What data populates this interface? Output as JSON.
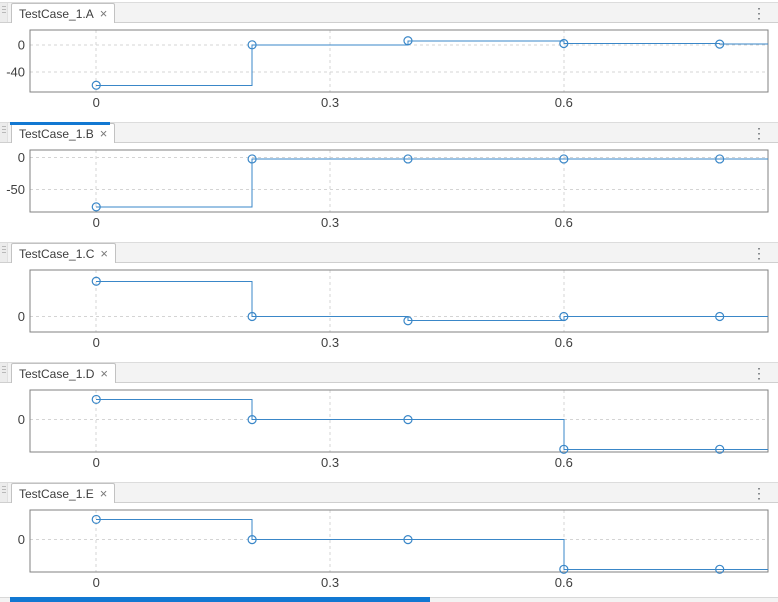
{
  "ui": {
    "close_glyph": "×",
    "menu_glyph": "⋮"
  },
  "colors": {
    "line": "#3a87c8",
    "accent": "#1278d2",
    "grid": "#d4d4d4",
    "box_border": "#828282",
    "tick_text": "#3f3f3f"
  },
  "panels": [
    {
      "tab": "TestCase_1.A"
    },
    {
      "tab": "TestCase_1.B"
    },
    {
      "tab": "TestCase_1.C"
    },
    {
      "tab": "TestCase_1.D"
    },
    {
      "tab": "TestCase_1.E"
    }
  ],
  "chart_data": [
    {
      "type": "line",
      "interp": "stairs-post",
      "title": "TestCase_1.A",
      "x": [
        0,
        0.2,
        0.4,
        0.6,
        0.8
      ],
      "values": [
        -60,
        0,
        6,
        2,
        1
      ],
      "xlim": [
        -0.085,
        0.862
      ],
      "ylim": [
        -70,
        22
      ],
      "xticks": [
        0,
        0.3,
        0.6
      ],
      "xtick_labels": [
        "0",
        "0.3",
        "0.6"
      ],
      "yticks": [
        0,
        -40
      ],
      "ytick_labels": [
        "0",
        "-40"
      ],
      "grid": true,
      "marker": "circle",
      "extend_right": true
    },
    {
      "type": "line",
      "interp": "stairs-post",
      "title": "TestCase_1.B",
      "x": [
        0,
        0.2,
        0.4,
        0.6,
        0.8
      ],
      "values": [
        -77,
        -2,
        -2,
        -2,
        -2
      ],
      "xlim": [
        -0.085,
        0.862
      ],
      "ylim": [
        -85,
        12
      ],
      "xticks": [
        0,
        0.3,
        0.6
      ],
      "xtick_labels": [
        "0",
        "0.3",
        "0.6"
      ],
      "yticks": [
        0,
        -50
      ],
      "ytick_labels": [
        "0",
        "-50"
      ],
      "grid": true,
      "marker": "circle",
      "extend_right": true
    },
    {
      "type": "line",
      "interp": "stairs-post",
      "title": "TestCase_1.C",
      "x": [
        0,
        0.2,
        0.4,
        0.6,
        0.8
      ],
      "values": [
        25,
        0,
        -3,
        0,
        0
      ],
      "xlim": [
        -0.085,
        0.862
      ],
      "ylim": [
        -11,
        33
      ],
      "xticks": [
        0,
        0.3,
        0.6
      ],
      "xtick_labels": [
        "0",
        "0.3",
        "0.6"
      ],
      "yticks": [
        0
      ],
      "ytick_labels": [
        "0"
      ],
      "grid": true,
      "marker": "circle",
      "extend_right": true
    },
    {
      "type": "line",
      "interp": "stairs-post",
      "title": "TestCase_1.D",
      "x": [
        0,
        0.2,
        0.4,
        0.6,
        0.8
      ],
      "values": [
        15,
        0,
        0,
        -22,
        -22
      ],
      "xlim": [
        -0.085,
        0.862
      ],
      "ylim": [
        -24,
        22
      ],
      "xticks": [
        0,
        0.3,
        0.6
      ],
      "xtick_labels": [
        "0",
        "0.3",
        "0.6"
      ],
      "yticks": [
        0
      ],
      "ytick_labels": [
        "0"
      ],
      "grid": true,
      "marker": "circle",
      "extend_right": true
    },
    {
      "type": "line",
      "interp": "stairs-post",
      "title": "TestCase_1.E",
      "x": [
        0,
        0.2,
        0.4,
        0.6,
        0.8
      ],
      "values": [
        15,
        0,
        0,
        -22,
        -22
      ],
      "xlim": [
        -0.085,
        0.862
      ],
      "ylim": [
        -24,
        22
      ],
      "xticks": [
        0,
        0.3,
        0.6
      ],
      "xtick_labels": [
        "0",
        "0.3",
        "0.6"
      ],
      "yticks": [
        0
      ],
      "ytick_labels": [
        "0"
      ],
      "grid": true,
      "marker": "circle",
      "extend_right": true
    }
  ]
}
